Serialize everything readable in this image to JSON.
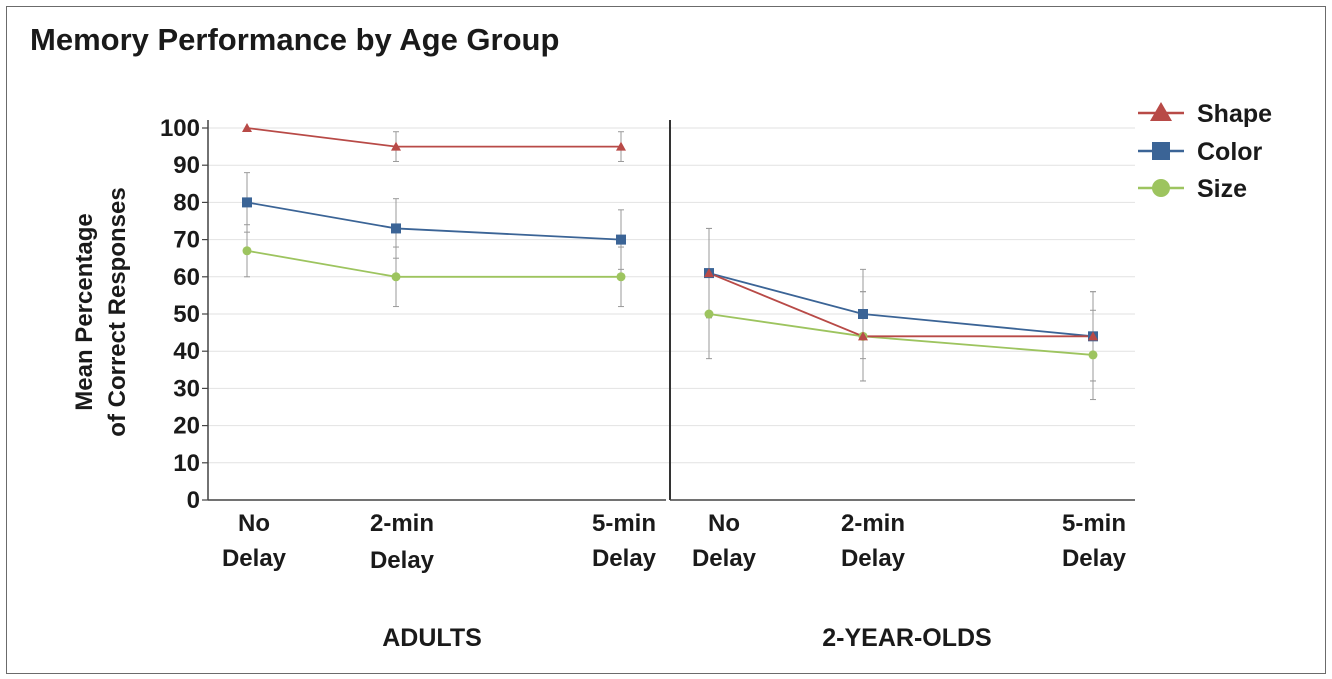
{
  "title": "Memory Performance by Age Group",
  "chart_data": {
    "type": "line",
    "title": "Memory Performance by Age Group",
    "ylabel_lines": [
      "Mean Percentage",
      "of Correct Responses"
    ],
    "ylim": [
      0,
      100
    ],
    "yticks": [
      0,
      10,
      20,
      30,
      40,
      50,
      60,
      70,
      80,
      90,
      100
    ],
    "categories": [
      [
        "No",
        "Delay"
      ],
      [
        "2-min",
        "Delay"
      ],
      [
        "5-min",
        "Delay"
      ]
    ],
    "grid": true,
    "legend_position": "top-right",
    "panels": [
      {
        "label": "ADULTS",
        "series": [
          {
            "name": "Shape",
            "values": [
              100,
              95,
              95
            ],
            "errors": [
              0,
              4,
              4
            ]
          },
          {
            "name": "Color",
            "values": [
              80,
              73,
              70
            ],
            "errors": [
              8,
              8,
              8
            ]
          },
          {
            "name": "Size",
            "values": [
              67,
              60,
              60
            ],
            "errors": [
              7,
              8,
              8
            ]
          }
        ]
      },
      {
        "label": "2-YEAR-OLDS",
        "series": [
          {
            "name": "Shape",
            "values": [
              61,
              44,
              44
            ],
            "errors": [
              12,
              12,
              12
            ]
          },
          {
            "name": "Color",
            "values": [
              61,
              50,
              44
            ],
            "errors": [
              12,
              12,
              12
            ]
          },
          {
            "name": "Size",
            "values": [
              50,
              44,
              39
            ],
            "errors": [
              12,
              12,
              12
            ]
          }
        ]
      }
    ],
    "series_styles": [
      {
        "name": "Shape",
        "color": "#b84a47",
        "marker": "triangle"
      },
      {
        "name": "Color",
        "color": "#3b6496",
        "marker": "square"
      },
      {
        "name": "Size",
        "color": "#9dc45f",
        "marker": "circle"
      }
    ]
  }
}
